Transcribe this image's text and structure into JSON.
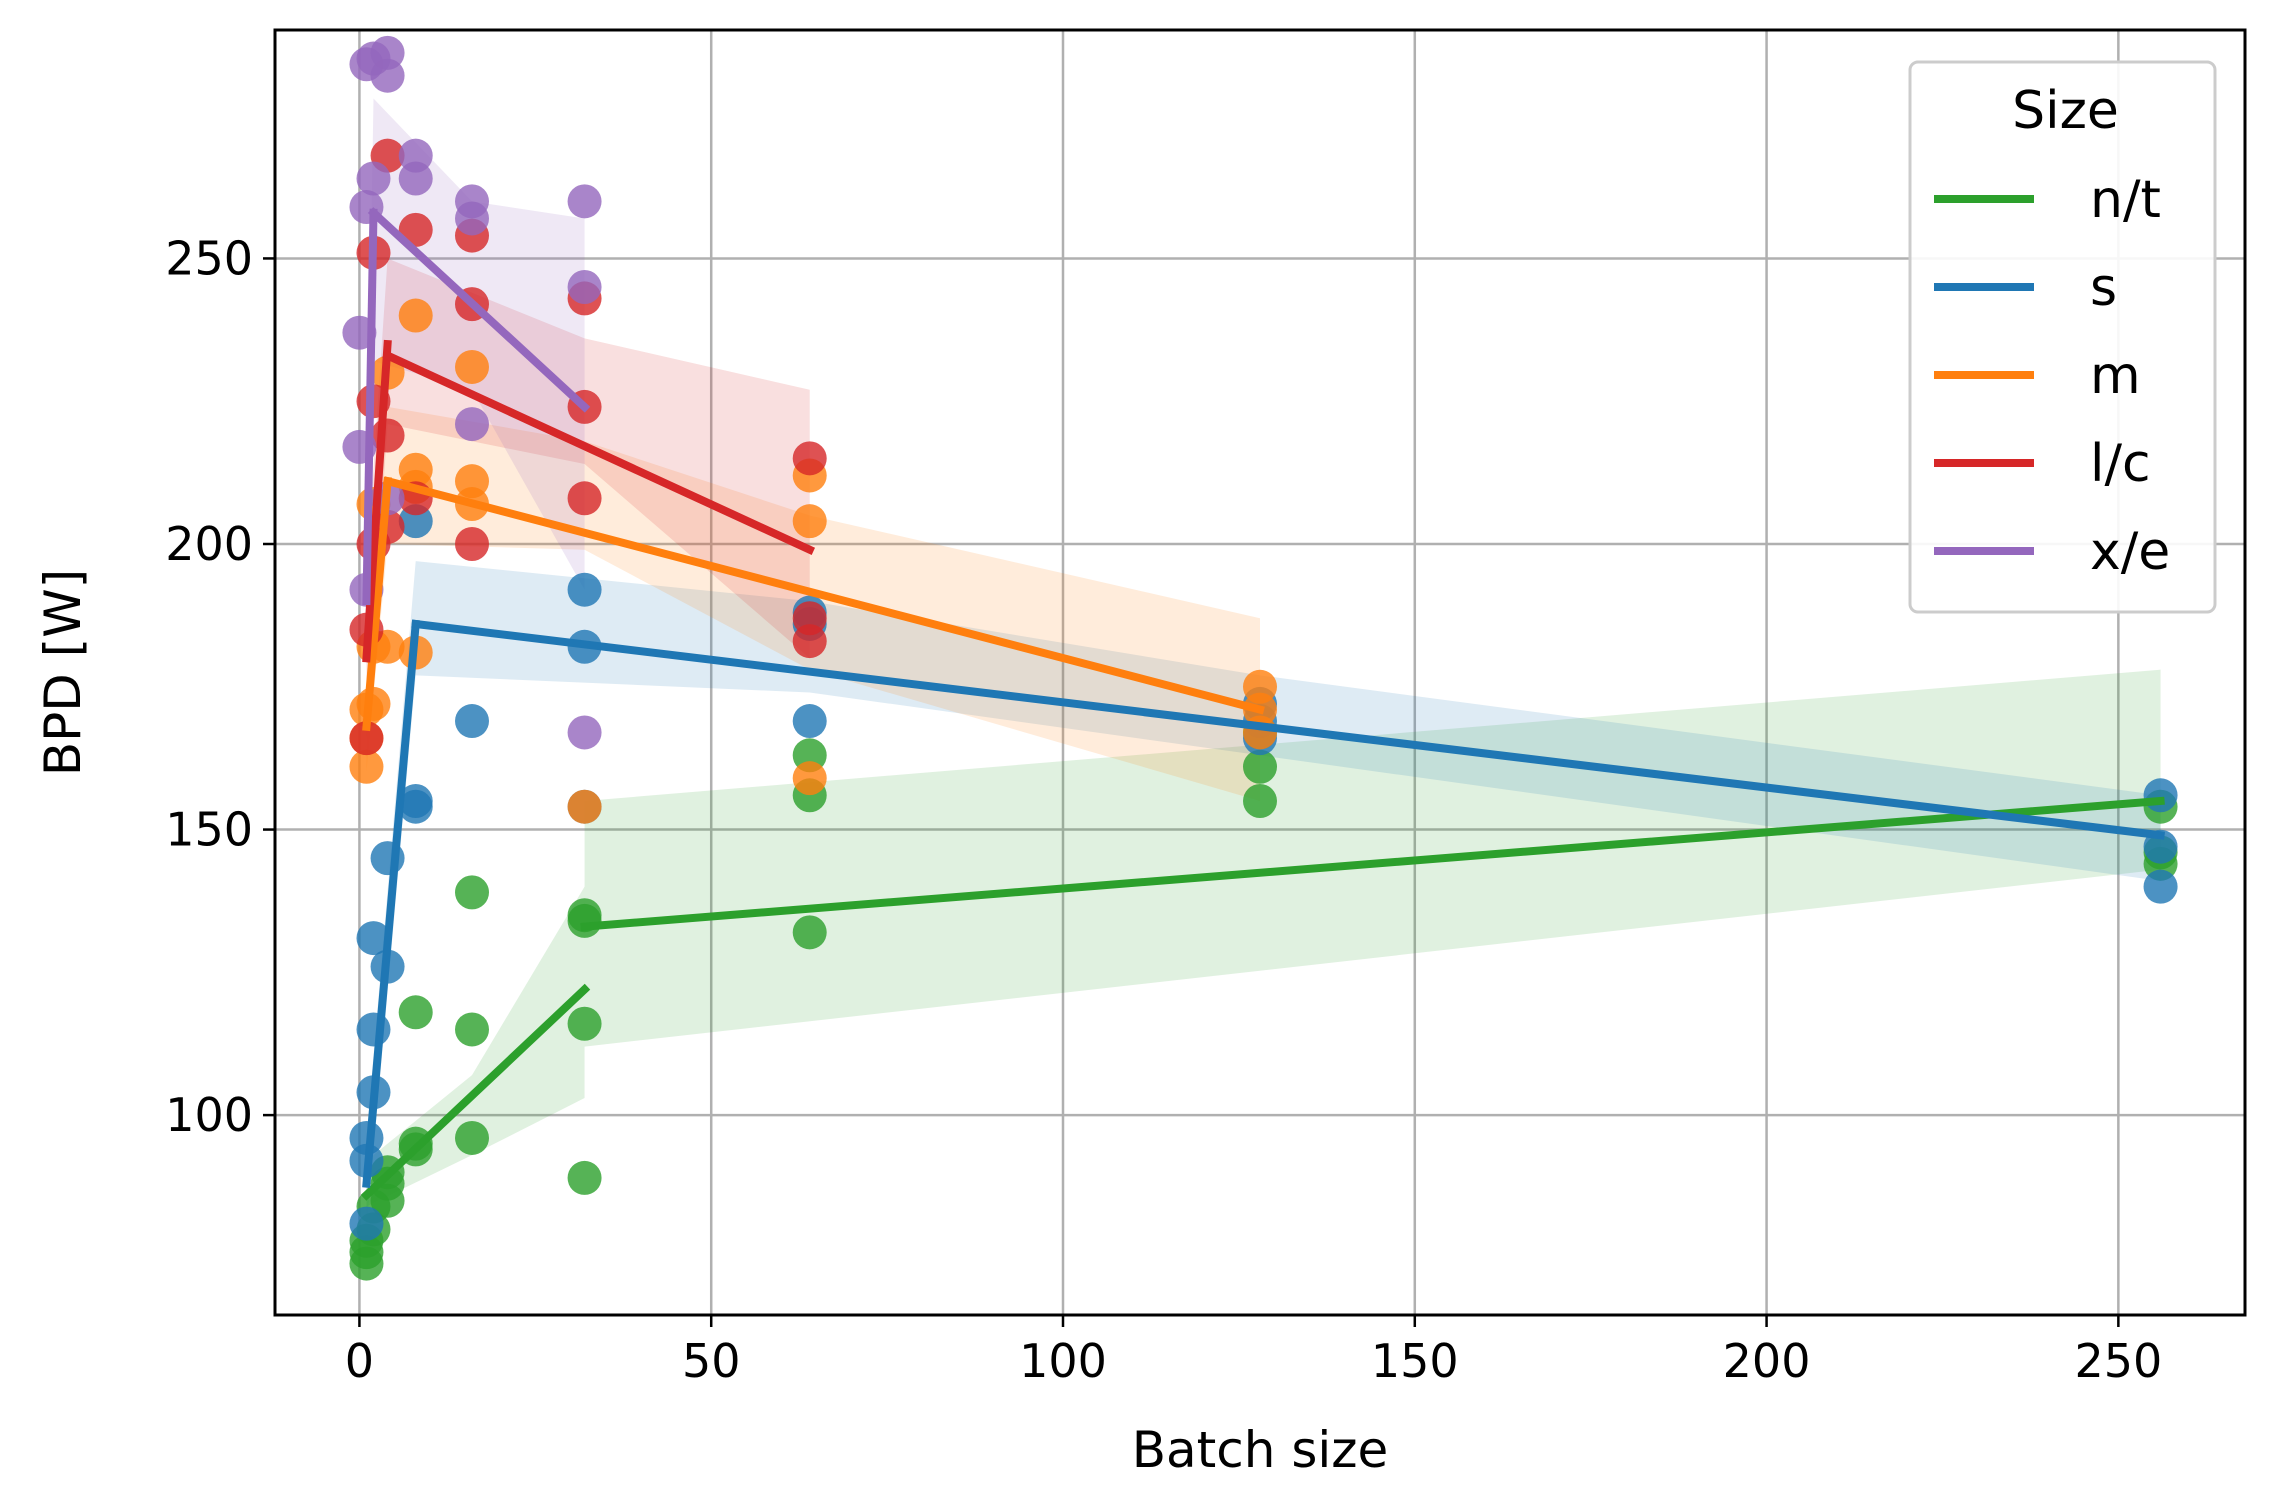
{
  "chart_data": {
    "type": "scatter",
    "title": "",
    "xlabel": "Batch size",
    "ylabel": "BPD [W]",
    "xlim": [
      -12,
      268
    ],
    "ylim": [
      65,
      290
    ],
    "x_ticks": [
      0,
      50,
      100,
      150,
      200,
      250
    ],
    "y_ticks": [
      100,
      150,
      200,
      250
    ],
    "grid": true,
    "legend": {
      "title": "Size",
      "position": "top-right"
    },
    "series": [
      {
        "name": "n/t",
        "color": "#2ca02c",
        "points": [
          [
            1,
            74
          ],
          [
            1,
            76
          ],
          [
            1,
            78
          ],
          [
            2,
            80
          ],
          [
            2,
            84
          ],
          [
            4,
            85
          ],
          [
            4,
            88
          ],
          [
            4,
            90
          ],
          [
            8,
            94
          ],
          [
            8,
            95
          ],
          [
            8,
            118
          ],
          [
            16,
            96
          ],
          [
            16,
            115
          ],
          [
            16,
            139
          ],
          [
            32,
            89
          ],
          [
            32,
            116
          ],
          [
            32,
            134
          ],
          [
            32,
            135
          ],
          [
            64,
            132
          ],
          [
            64,
            156
          ],
          [
            64,
            163
          ],
          [
            128,
            155
          ],
          [
            128,
            161
          ],
          [
            128,
            167
          ],
          [
            256,
            144
          ],
          [
            256,
            146
          ],
          [
            256,
            154
          ]
        ],
        "trend_segments": [
          {
            "x": [
              1,
              32
            ],
            "y": [
              86,
              122
            ]
          },
          {
            "x": [
              32,
              256
            ],
            "y": [
              133,
              155
            ]
          }
        ],
        "ci_band": {
          "x": [
            1,
            16,
            32,
            32,
            256,
            256,
            32,
            32,
            16,
            1
          ],
          "y": [
            84,
            93,
            103,
            155,
            178,
            143,
            112,
            140,
            107,
            92
          ]
        }
      },
      {
        "name": "s",
        "color": "#1f77b4",
        "points": [
          [
            1,
            81
          ],
          [
            1,
            92
          ],
          [
            1,
            96
          ],
          [
            2,
            104
          ],
          [
            2,
            115
          ],
          [
            2,
            131
          ],
          [
            4,
            126
          ],
          [
            4,
            145
          ],
          [
            8,
            154
          ],
          [
            8,
            155
          ],
          [
            8,
            204
          ],
          [
            16,
            169
          ],
          [
            32,
            154
          ],
          [
            32,
            182
          ],
          [
            32,
            192
          ],
          [
            64,
            169
          ],
          [
            64,
            186
          ],
          [
            64,
            188
          ],
          [
            128,
            166
          ],
          [
            128,
            169
          ],
          [
            128,
            172
          ],
          [
            256,
            140
          ],
          [
            256,
            147
          ],
          [
            256,
            156
          ]
        ],
        "trend_segments": [
          {
            "x": [
              1,
              8
            ],
            "y": [
              88,
              186
            ]
          },
          {
            "x": [
              8,
              256
            ],
            "y": [
              186,
              149
            ]
          }
        ],
        "ci_band": {
          "x": [
            1,
            8,
            64,
            128,
            256,
            256,
            128,
            64,
            8,
            1
          ],
          "y": [
            96,
            197,
            190,
            177,
            156,
            141,
            163,
            174,
            177,
            80
          ]
        }
      },
      {
        "name": "m",
        "color": "#ff7f0e",
        "points": [
          [
            1,
            161
          ],
          [
            1,
            166
          ],
          [
            1,
            171
          ],
          [
            2,
            172
          ],
          [
            2,
            182
          ],
          [
            2,
            207
          ],
          [
            4,
            182
          ],
          [
            4,
            230
          ],
          [
            8,
            181
          ],
          [
            8,
            210
          ],
          [
            8,
            213
          ],
          [
            8,
            240
          ],
          [
            16,
            207
          ],
          [
            16,
            211
          ],
          [
            16,
            231
          ],
          [
            32,
            154
          ],
          [
            64,
            159
          ],
          [
            64,
            204
          ],
          [
            64,
            212
          ],
          [
            128,
            167
          ],
          [
            128,
            171
          ],
          [
            128,
            175
          ]
        ],
        "trend_segments": [
          {
            "x": [
              1,
              4
            ],
            "y": [
              168,
              211
            ]
          },
          {
            "x": [
              4,
              128
            ],
            "y": [
              211,
              171
            ]
          }
        ],
        "ci_band": {
          "x": [
            1,
            4,
            32,
            64,
            128,
            128,
            64,
            32,
            4,
            1
          ],
          "y": [
            176,
            224,
            218,
            205,
            187,
            155,
            178,
            199,
            200,
            160
          ]
        }
      },
      {
        "name": "l/c",
        "color": "#d62728",
        "points": [
          [
            1,
            166
          ],
          [
            1,
            185
          ],
          [
            2,
            200
          ],
          [
            2,
            225
          ],
          [
            2,
            251
          ],
          [
            4,
            203
          ],
          [
            4,
            219
          ],
          [
            4,
            268
          ],
          [
            8,
            208
          ],
          [
            8,
            255
          ],
          [
            16,
            200
          ],
          [
            16,
            242
          ],
          [
            16,
            254
          ],
          [
            32,
            208
          ],
          [
            32,
            224
          ],
          [
            32,
            243
          ],
          [
            64,
            183
          ],
          [
            64,
            187
          ],
          [
            64,
            215
          ]
        ],
        "trend_segments": [
          {
            "x": [
              1,
              4
            ],
            "y": [
              180,
              235
            ]
          },
          {
            "x": [
              4,
              64
            ],
            "y": [
              233,
              199
            ]
          }
        ],
        "ci_band": {
          "x": [
            1,
            4,
            32,
            64,
            64,
            32,
            4,
            1
          ],
          "y": [
            195,
            250,
            236,
            227,
            180,
            214,
            221,
            166
          ]
        }
      },
      {
        "name": "x/e",
        "color": "#9467bd",
        "points": [
          [
            0,
            217
          ],
          [
            0,
            237
          ],
          [
            1,
            192
          ],
          [
            1,
            259
          ],
          [
            1,
            284
          ],
          [
            2,
            264
          ],
          [
            2,
            285
          ],
          [
            4,
            208
          ],
          [
            4,
            282
          ],
          [
            4,
            286
          ],
          [
            8,
            264
          ],
          [
            8,
            268
          ],
          [
            16,
            221
          ],
          [
            16,
            257
          ],
          [
            16,
            260
          ],
          [
            32,
            167
          ],
          [
            32,
            245
          ],
          [
            32,
            260
          ]
        ],
        "trend_segments": [
          {
            "x": [
              1,
              2
            ],
            "y": [
              190,
              258
            ]
          },
          {
            "x": [
              2,
              32
            ],
            "y": [
              258,
              224
            ]
          }
        ],
        "ci_band": {
          "x": [
            1,
            2,
            16,
            32,
            32,
            16,
            2,
            1
          ],
          "y": [
            205,
            278,
            260,
            257,
            192,
            227,
            232,
            178
          ]
        }
      }
    ]
  }
}
